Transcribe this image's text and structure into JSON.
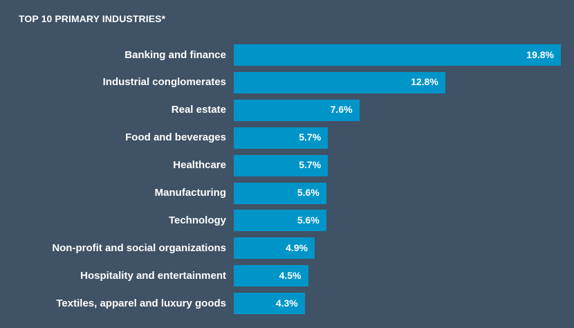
{
  "chart_data": {
    "type": "bar",
    "orientation": "horizontal",
    "title": "TOP 10 PRIMARY INDUSTRIES*",
    "xlabel": "",
    "ylabel": "",
    "categories": [
      "Banking and finance",
      "Industrial conglomerates",
      "Real estate",
      "Food and beverages",
      "Healthcare",
      "Manufacturing",
      "Technology",
      "Non-profit and social organizations",
      "Hospitality and entertainment",
      "Textiles, apparel and luxury goods"
    ],
    "values": [
      19.8,
      12.8,
      7.6,
      5.7,
      5.7,
      5.6,
      5.6,
      4.9,
      4.5,
      4.3
    ],
    "value_labels": [
      "19.8%",
      "12.8%",
      "7.6%",
      "5.7%",
      "5.7%",
      "5.6%",
      "5.6%",
      "4.9%",
      "4.5%",
      "4.3%"
    ],
    "xlim": [
      0,
      19.8
    ],
    "grid": false,
    "legend": "none"
  },
  "colors": {
    "background": "#3f5266",
    "bar": "#0095c8",
    "text": "#ffffff"
  }
}
